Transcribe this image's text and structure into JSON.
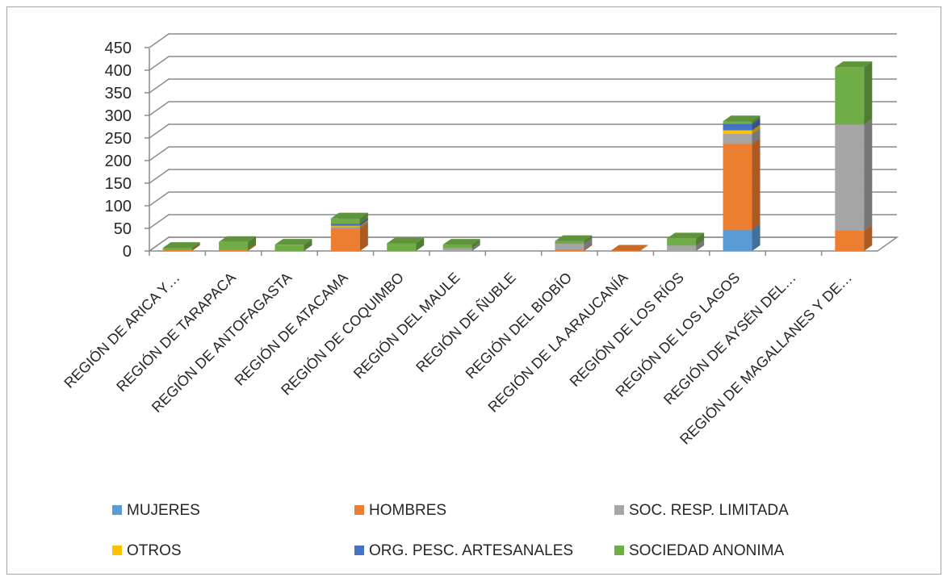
{
  "chart_data": {
    "type": "bar",
    "stacked": true,
    "three_d": true,
    "title": "",
    "xlabel": "",
    "ylabel": "",
    "ylim": [
      0,
      450
    ],
    "yticks": [
      0,
      50,
      100,
      150,
      200,
      250,
      300,
      350,
      400,
      450
    ],
    "grid": true,
    "legend_position": "bottom",
    "categories": [
      "REGIÓN DE ARICA Y…",
      "REGIÓN DE TARAPACA",
      "REGIÓN DE ANTOFAGASTA",
      "REGIÓN DE ATACAMA",
      "REGIÓN DE COQUIMBO",
      "REGIÓN DEL MAULE",
      "REGIÓN DE ÑUBLE",
      "REGIÓN DEL BIOBÍO",
      "REGIÓN DE LA ARAUCANÍA",
      "REGIÓN DE LOS RÍOS",
      "REGIÓN DE LOS LAGOS",
      "REGIÓN DE AYSÉN DEL…",
      "REGIÓN DE MAGALLANES Y DE…"
    ],
    "series": [
      {
        "name": "MUJERES",
        "color": "#5b9bd5",
        "values": [
          0,
          0,
          0,
          0,
          0,
          0,
          0,
          0,
          0,
          0,
          47,
          0,
          0
        ]
      },
      {
        "name": "HOMBRES",
        "color": "#ed7d31",
        "values": [
          3,
          3,
          0,
          50,
          0,
          0,
          0,
          3,
          1,
          0,
          190,
          0,
          45
        ]
      },
      {
        "name": "SOC. RESP. LIMITADA",
        "color": "#a5a5a5",
        "values": [
          0,
          0,
          0,
          4,
          0,
          6,
          0,
          13,
          0,
          12,
          22,
          0,
          235
        ]
      },
      {
        "name": "OTROS",
        "color": "#ffc000",
        "values": [
          0,
          0,
          0,
          2,
          0,
          0,
          0,
          0,
          0,
          0,
          8,
          0,
          0
        ]
      },
      {
        "name": "ORG. PESC. ARTESANALES",
        "color": "#4472c4",
        "values": [
          0,
          0,
          0,
          4,
          0,
          0,
          0,
          0,
          0,
          0,
          14,
          0,
          0
        ]
      },
      {
        "name": "SOCIEDAD ANONIMA",
        "color": "#70ad47",
        "values": [
          4,
          17,
          14,
          12,
          17,
          8,
          0,
          6,
          0,
          16,
          6,
          0,
          127
        ]
      }
    ]
  }
}
